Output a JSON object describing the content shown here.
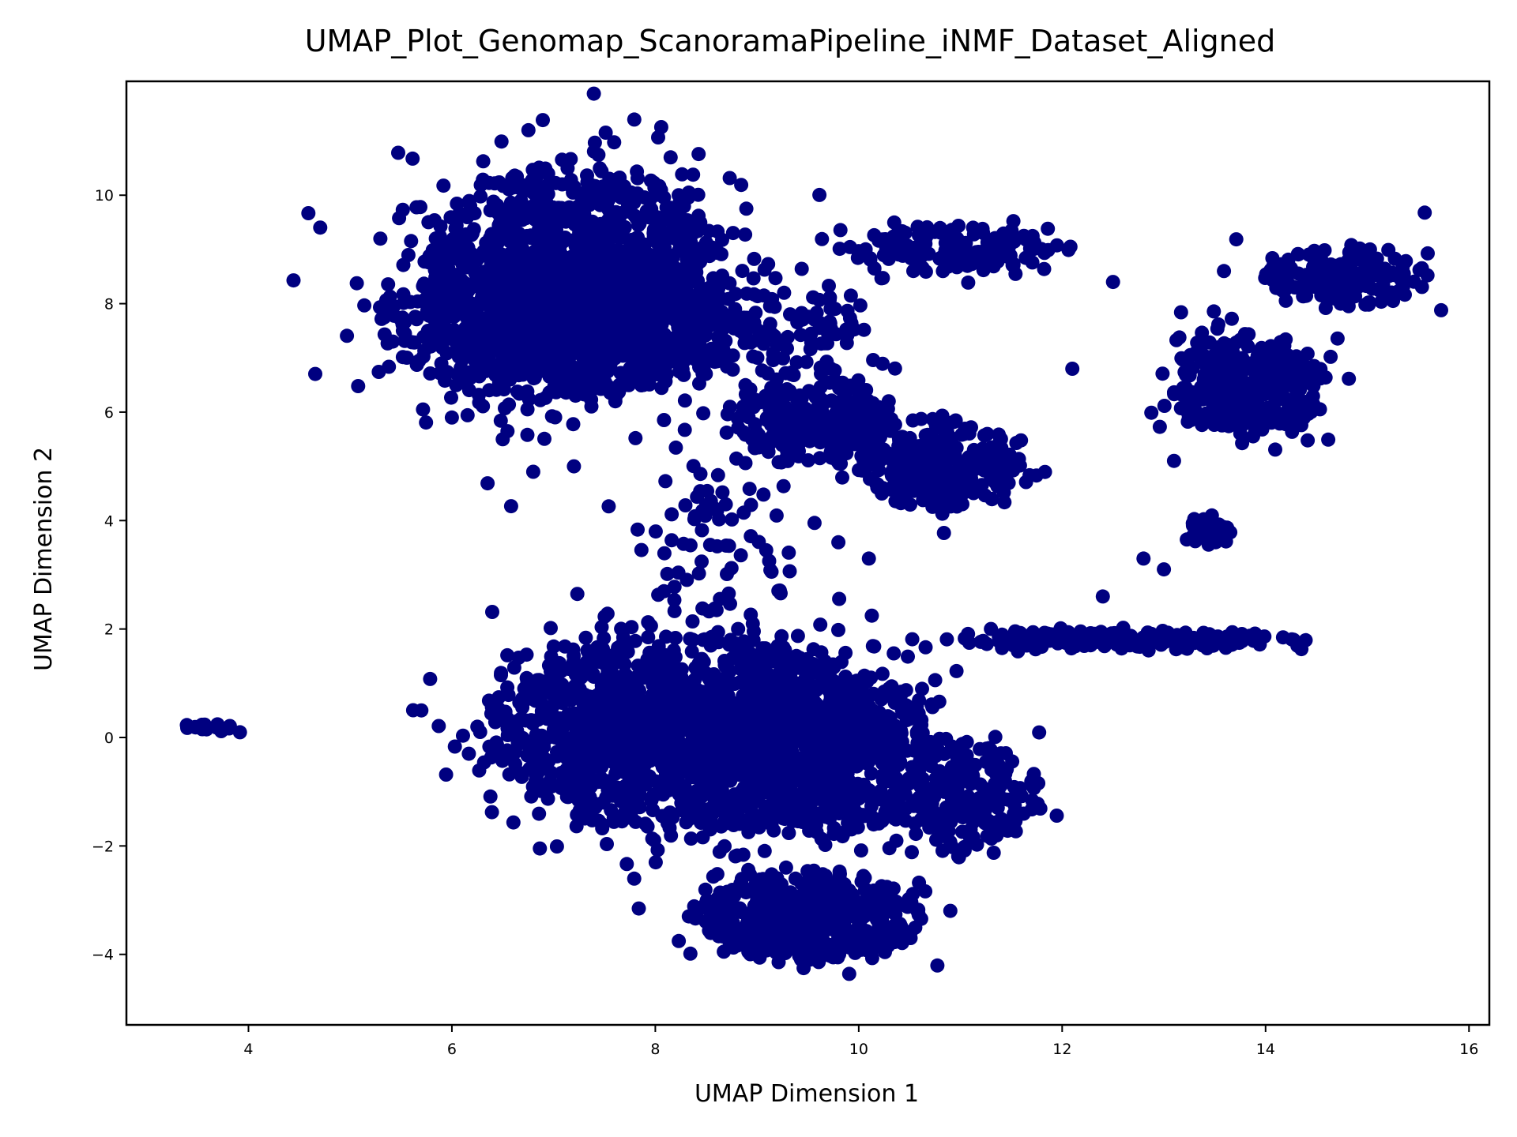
{
  "chart_data": {
    "type": "scatter",
    "title": "UMAP_Plot_Genomap_ScanoramaPipeline_iNMF_Dataset_Aligned",
    "xlabel": "UMAP Dimension 1",
    "ylabel": "UMAP Dimension 2",
    "xlim": [
      2.8,
      16.2
    ],
    "ylim": [
      -5.3,
      12.1
    ],
    "xticks": [
      4,
      6,
      8,
      10,
      12,
      14,
      16
    ],
    "xtick_labels": [
      "4",
      "6",
      "8",
      "10",
      "12",
      "14",
      "16"
    ],
    "yticks": [
      -4,
      -2,
      0,
      2,
      4,
      6,
      8,
      10
    ],
    "ytick_labels": [
      "−4",
      "−2",
      "0",
      "2",
      "4",
      "6",
      "8",
      "10"
    ],
    "grid": false,
    "legend": "none",
    "marker_color": "#000080",
    "clusters": [
      {
        "cx": 7.2,
        "cy": 8.4,
        "rx": 1.5,
        "ry": 2.2,
        "n": 1300
      },
      {
        "cx": 7.0,
        "cy": 7.6,
        "rx": 1.7,
        "ry": 1.3,
        "n": 600
      },
      {
        "cx": 9.6,
        "cy": 5.8,
        "rx": 0.8,
        "ry": 0.8,
        "n": 260
      },
      {
        "cx": 10.8,
        "cy": 5.0,
        "rx": 0.8,
        "ry": 0.8,
        "n": 260
      },
      {
        "cx": 8.9,
        "cy": 7.4,
        "rx": 1.2,
        "ry": 1.0,
        "n": 150
      },
      {
        "cx": 10.9,
        "cy": 9.0,
        "rx": 1.0,
        "ry": 0.45,
        "n": 130
      },
      {
        "cx": 13.8,
        "cy": 6.5,
        "rx": 0.8,
        "ry": 0.9,
        "n": 380
      },
      {
        "cx": 14.8,
        "cy": 8.5,
        "rx": 0.8,
        "ry": 0.55,
        "n": 180
      },
      {
        "cx": 13.4,
        "cy": 3.8,
        "rx": 0.25,
        "ry": 0.3,
        "n": 40
      },
      {
        "cx": 8.3,
        "cy": 0.1,
        "rx": 1.9,
        "ry": 1.8,
        "n": 1500
      },
      {
        "cx": 9.6,
        "cy": -0.3,
        "rx": 1.2,
        "ry": 1.6,
        "n": 600
      },
      {
        "cx": 9.5,
        "cy": -3.3,
        "rx": 1.1,
        "ry": 0.8,
        "n": 550
      },
      {
        "cx": 11.1,
        "cy": -1.1,
        "rx": 0.7,
        "ry": 1.0,
        "n": 180
      },
      {
        "cx": 12.7,
        "cy": 1.8,
        "rx": 1.7,
        "ry": 0.18,
        "n": 170
      },
      {
        "cx": 8.6,
        "cy": 3.5,
        "rx": 0.8,
        "ry": 1.4,
        "n": 70
      },
      {
        "cx": 3.7,
        "cy": 0.2,
        "rx": 0.3,
        "ry": 0.09,
        "n": 20
      }
    ],
    "outliers": [
      [
        5.7,
        0.5
      ],
      [
        6.5,
        5.5
      ],
      [
        7.2,
        5.0
      ],
      [
        11.3,
        2.0
      ],
      [
        13.1,
        5.1
      ],
      [
        12.8,
        3.3
      ],
      [
        13.0,
        3.1
      ],
      [
        9.8,
        3.6
      ],
      [
        10.1,
        3.3
      ],
      [
        5.5,
        7.7
      ],
      [
        6.0,
        5.9
      ],
      [
        6.8,
        4.9
      ],
      [
        12.4,
        2.6
      ],
      [
        12.1,
        6.8
      ],
      [
        12.5,
        8.4
      ]
    ]
  }
}
